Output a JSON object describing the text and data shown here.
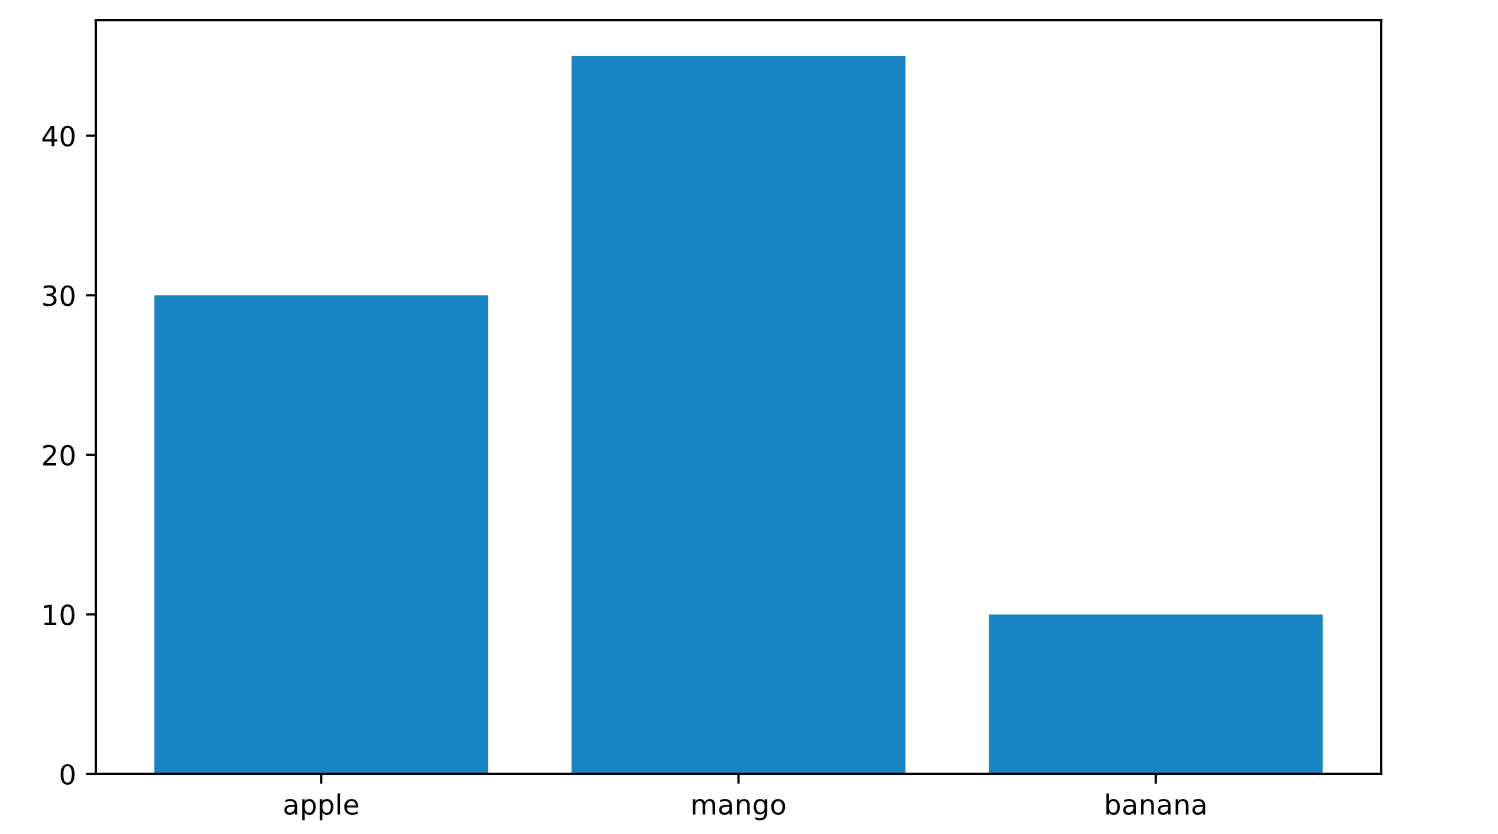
{
  "chart_data": {
    "type": "bar",
    "categories": [
      "apple",
      "mango",
      "banana"
    ],
    "values": [
      30,
      45,
      10
    ],
    "color": "#1984c2",
    "ylim": [
      0,
      47.25
    ],
    "yticks": [
      0,
      10,
      20,
      30,
      40
    ],
    "grid": false,
    "legend": false
  }
}
